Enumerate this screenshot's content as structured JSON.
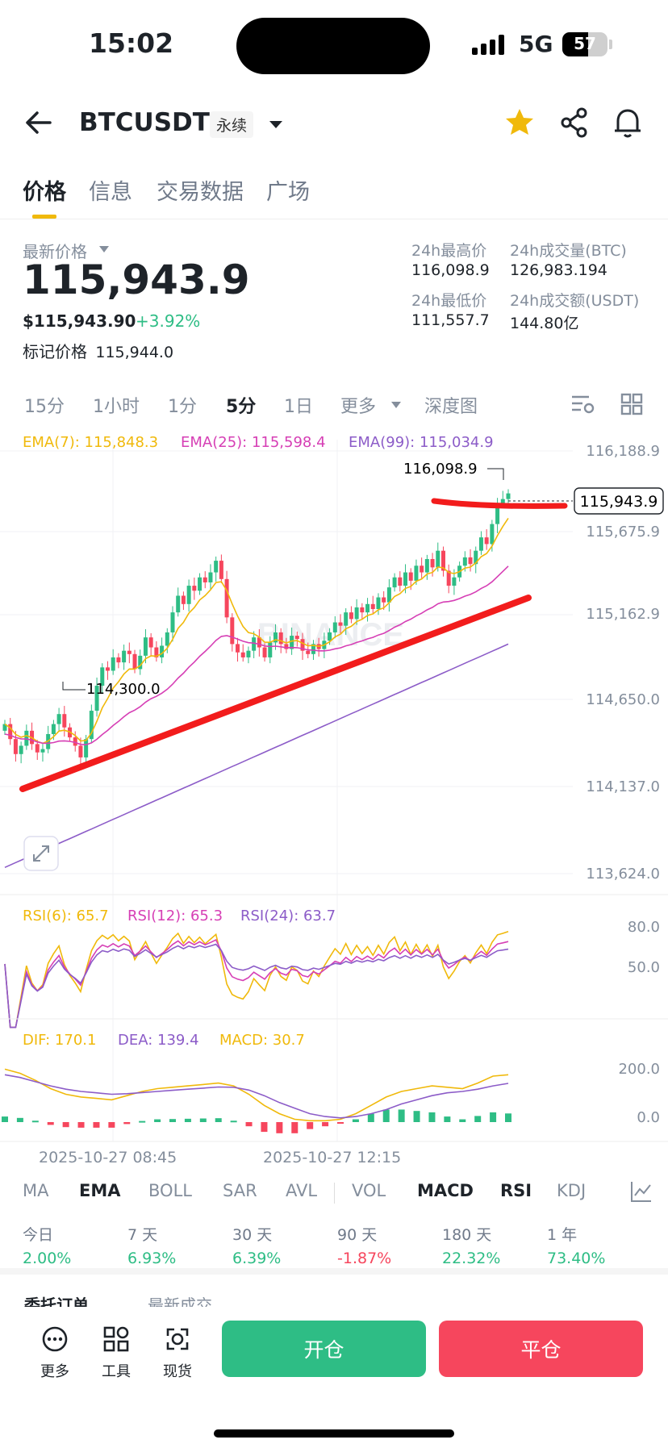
{
  "status": {
    "time": "15:02",
    "network": "5G",
    "battery": "57"
  },
  "header": {
    "symbol": "BTCUSDT",
    "contract_type": "永续"
  },
  "tabs": [
    "价格",
    "信息",
    "交易数据",
    "广场"
  ],
  "price": {
    "latest_label": "最新价格",
    "last": "115,943.9",
    "usd": "$115,943.90",
    "change": "+3.92%",
    "mark_label": "标记价格",
    "mark": "115,944.0",
    "high_label": "24h最高价",
    "high": "116,098.9",
    "low_label": "24h最低价",
    "low": "111,557.7",
    "vol_btc_label": "24h成交量(BTC)",
    "vol_btc": "126,983.194",
    "vol_usdt_label": "24h成交额(USDT)",
    "vol_usdt": "144.80亿"
  },
  "intervals": [
    "15分",
    "1小时",
    "1分",
    "5分",
    "1日",
    "更多",
    "深度图"
  ],
  "chart_data": {
    "type": "candlestick",
    "ema_legend": [
      {
        "label": "EMA(7): 115,848.3",
        "color": "#f0b90b"
      },
      {
        "label": "EMA(25): 115,598.4",
        "color": "#d63fb5"
      },
      {
        "label": "EMA(99): 115,034.9",
        "color": "#8c5cc8"
      }
    ],
    "y_ticks": [
      "116,188.9",
      "115,675.9",
      "115,162.9",
      "114,650.0",
      "114,137.0",
      "113,624.0"
    ],
    "ylim": [
      113624.0,
      116188.9
    ],
    "current_price_tag": "115,943.9",
    "high_annotation": "116,098.9",
    "low_annotation": "114,300.0",
    "watermark": "BINANCE",
    "x_labels": [
      "2025-10-27 08:45",
      "2025-10-27 12:15"
    ],
    "closes": [
      114560,
      114470,
      114380,
      114430,
      114520,
      114440,
      114390,
      114410,
      114500,
      114560,
      114620,
      114540,
      114480,
      114430,
      114360,
      114470,
      114640,
      114790,
      114900,
      114880,
      114960,
      114930,
      115000,
      114980,
      114890,
      114970,
      115080,
      115020,
      114960,
      115030,
      115110,
      115230,
      115330,
      115280,
      115390,
      115360,
      115440,
      115410,
      115470,
      115540,
      115430,
      115200,
      115040,
      114990,
      114960,
      115000,
      115080,
      115020,
      114960,
      115050,
      115110,
      115040,
      115010,
      115090,
      115070,
      115000,
      114980,
      115040,
      115010,
      115060,
      115110,
      115170,
      115150,
      115230,
      115190,
      115260,
      115230,
      115280,
      115250,
      115320,
      115290,
      115380,
      115440,
      115390,
      115470,
      115420,
      115510,
      115470,
      115550,
      115500,
      115600,
      115480,
      115390,
      115440,
      115510,
      115560,
      115520,
      115600,
      115680,
      115640,
      115760,
      115880,
      115910,
      115943.9
    ],
    "rsi": {
      "legend": [
        {
          "label": "RSI(6): 65.7",
          "color": "#f0b90b"
        },
        {
          "label": "RSI(12): 65.3",
          "color": "#d63fb5"
        },
        {
          "label": "RSI(24): 63.7",
          "color": "#8c5cc8"
        }
      ],
      "y_ticks": [
        "80.0",
        "50.0"
      ]
    },
    "macd": {
      "legend": [
        {
          "label": "DIF: 170.1",
          "color": "#f0b90b"
        },
        {
          "label": "DEA: 139.4",
          "color": "#8c5cc8"
        },
        {
          "label": "MACD: 30.7",
          "color": "#f0b90b"
        }
      ],
      "y_ticks": [
        "200.0",
        "0.0"
      ],
      "dif": [
        190,
        175,
        150,
        120,
        100,
        90,
        85,
        80,
        95,
        110,
        120,
        125,
        130,
        135,
        140,
        130,
        100,
        60,
        30,
        10,
        5,
        5,
        10,
        30,
        60,
        90,
        110,
        120,
        130,
        125,
        120,
        140,
        165,
        170
      ],
      "dea": [
        170,
        160,
        145,
        130,
        118,
        110,
        105,
        100,
        102,
        106,
        110,
        114,
        118,
        122,
        126,
        125,
        115,
        95,
        70,
        50,
        30,
        20,
        15,
        20,
        30,
        45,
        65,
        80,
        95,
        105,
        110,
        118,
        130,
        139
      ]
    }
  },
  "indicators": [
    "MA",
    "EMA",
    "BOLL",
    "SAR",
    "AVL",
    "VOL",
    "MACD",
    "RSI",
    "KDJ"
  ],
  "performance": [
    {
      "label": "今日",
      "value": "2.00%"
    },
    {
      "label": "7 天",
      "value": "6.93%"
    },
    {
      "label": "30 天",
      "value": "6.39%"
    },
    {
      "label": "90 天",
      "value": "-1.87%"
    },
    {
      "label": "180 天",
      "value": "22.32%"
    },
    {
      "label": "1 年",
      "value": "73.40%"
    }
  ],
  "orders_tabs": [
    "委托订单",
    "最新成交"
  ],
  "bottom": {
    "more": "更多",
    "tools": "工具",
    "spot": "现货",
    "open": "开仓",
    "close": "平仓"
  },
  "colors": {
    "up": "#2ebd85",
    "down": "#f6465d",
    "accent": "#f0b90b"
  }
}
